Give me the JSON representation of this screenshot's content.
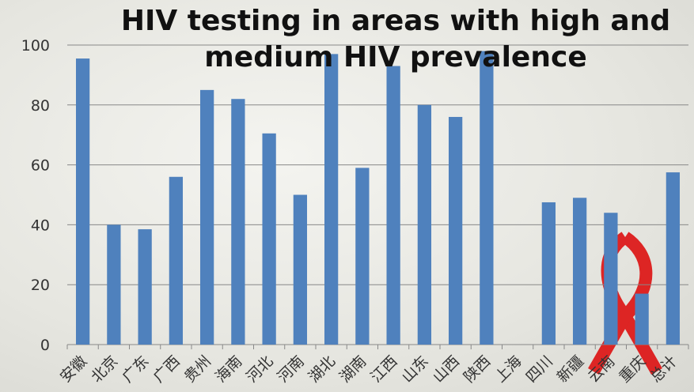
{
  "chart_data": {
    "type": "bar",
    "title": "HIV testing in areas with high and medium HIV prevalence",
    "categories": [
      "安徽",
      "北京",
      "广东",
      "广西",
      "贵州",
      "海南",
      "河北",
      "河南",
      "湖北",
      "湖南",
      "江西",
      "山东",
      "山西",
      "陕西",
      "上海",
      "四川",
      "新疆",
      "云南",
      "重庆",
      "总计"
    ],
    "values": [
      95.5,
      40,
      38.5,
      56,
      85,
      82,
      70.5,
      50,
      97,
      59,
      93,
      80,
      76,
      98,
      null,
      47.5,
      49,
      44,
      17,
      57.5
    ],
    "color": "#4f81bd",
    "ylim": [
      0,
      100
    ],
    "yticks": [
      0,
      20,
      40,
      60,
      80,
      100
    ],
    "grid": true
  }
}
